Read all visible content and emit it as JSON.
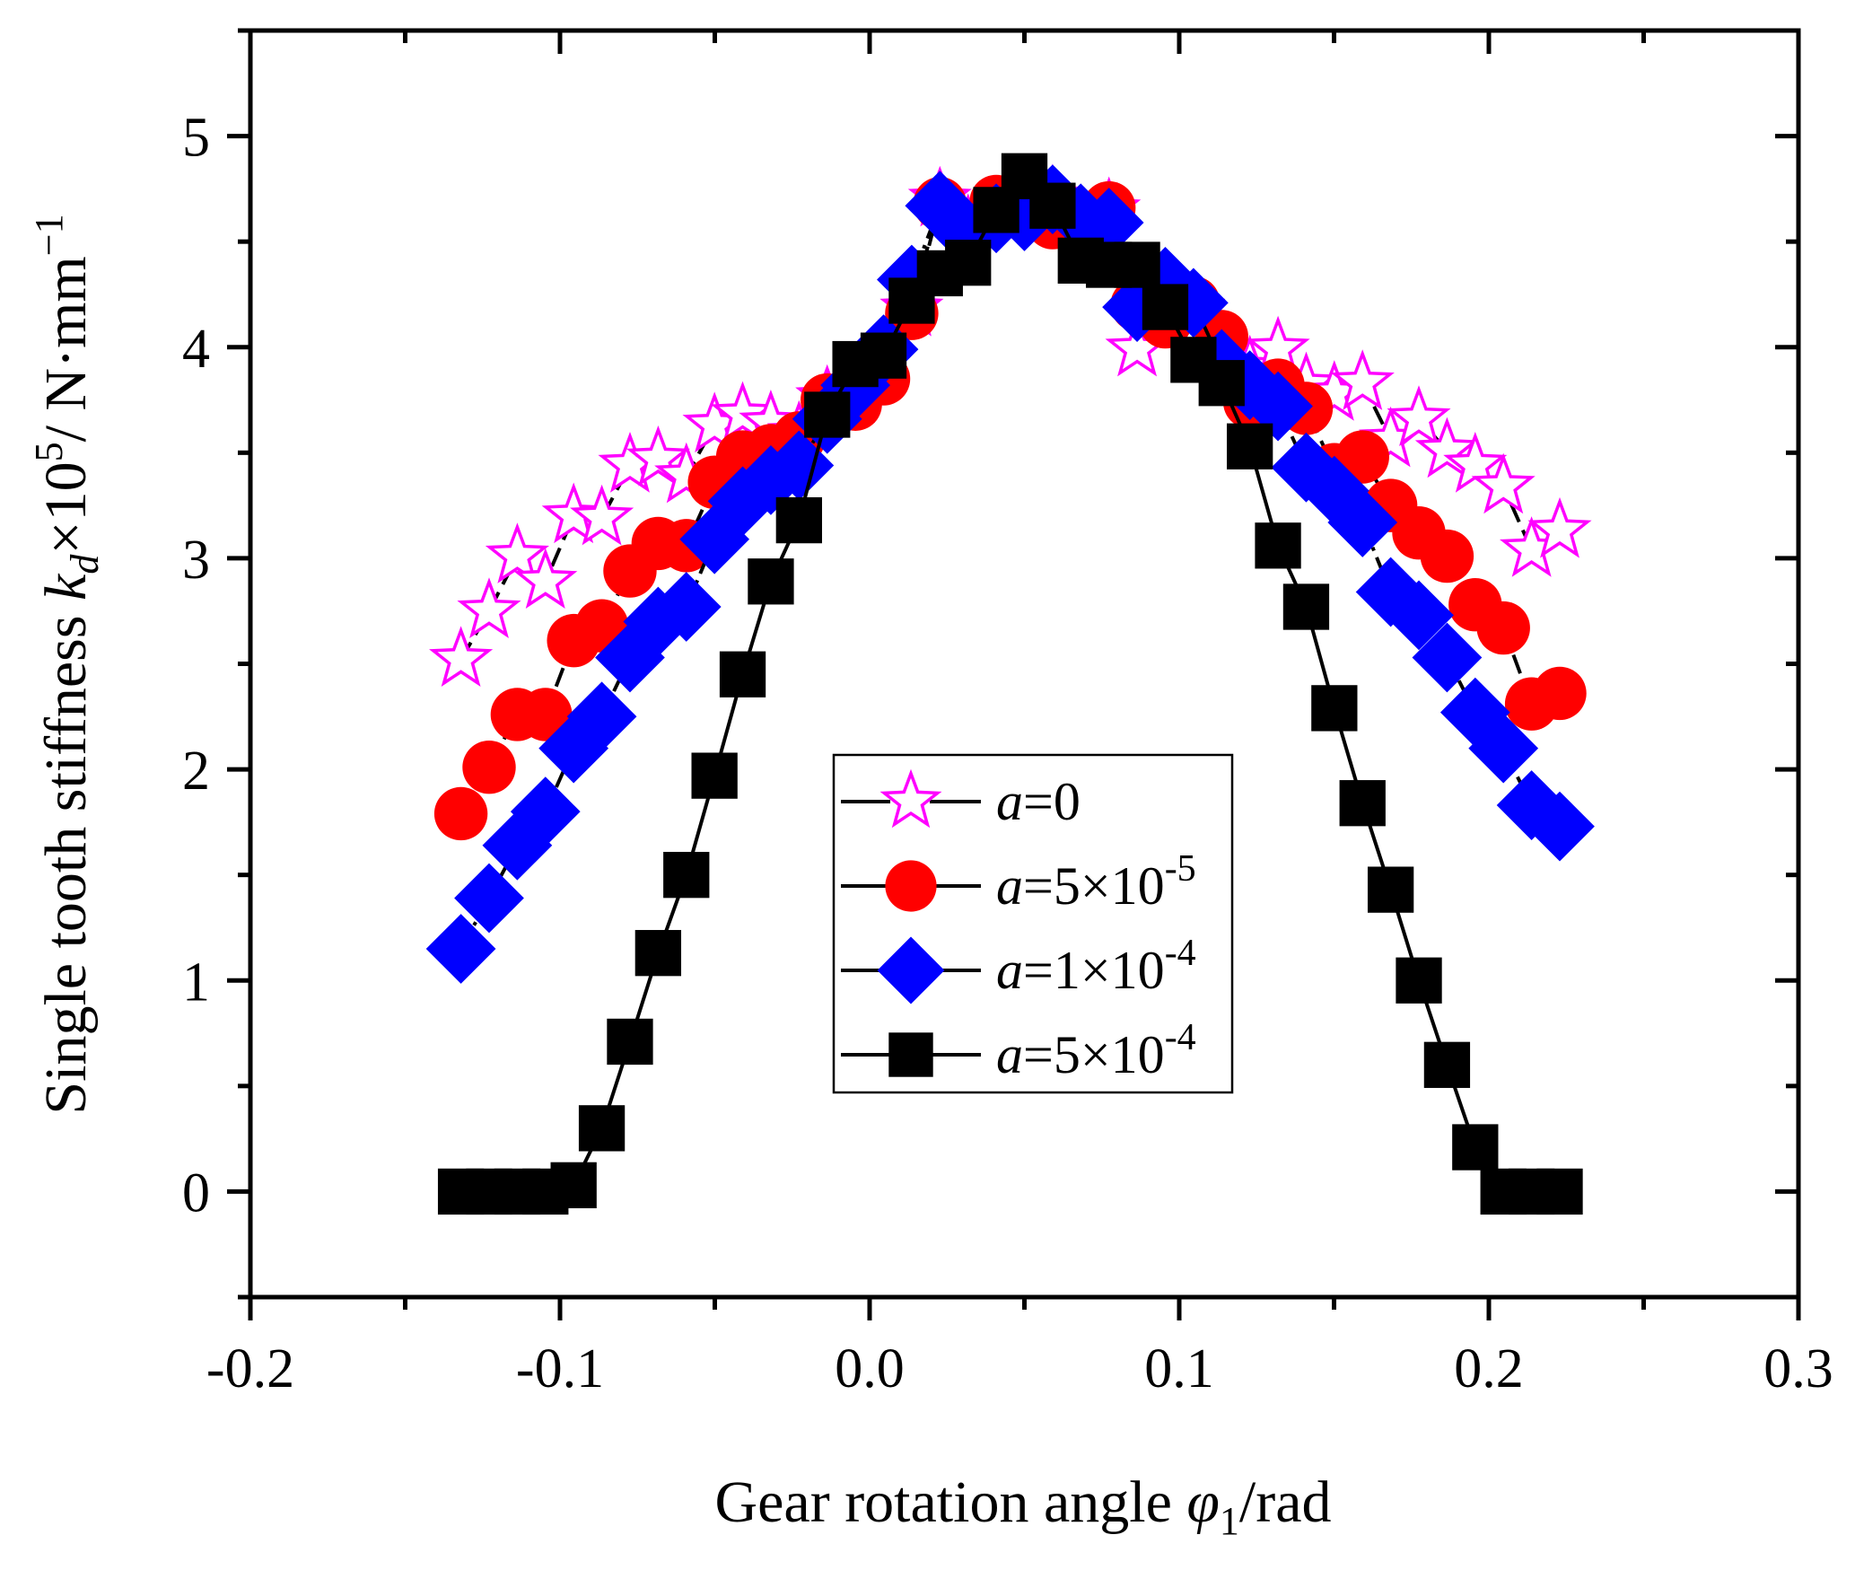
{
  "chart_data": {
    "type": "line",
    "title": "",
    "xlabel": "Gear rotation angle φ1/rad",
    "xlabel_parts": {
      "main": "Gear rotation angle ",
      "symbol": "φ",
      "subscript": "1",
      "unit": "/rad"
    },
    "ylabel": "Single tooth stiffness k_d×10^5/ N·mm^-1",
    "ylabel_parts": {
      "main": "Single tooth stiffness ",
      "symbol": "k",
      "subscript": "d",
      "times": "×10",
      "exp": "5",
      "unit": "/ N·mm",
      "unit_exp": "−1"
    },
    "xlim": [
      -0.2,
      0.3
    ],
    "ylim": [
      -0.5,
      5.5
    ],
    "x_major_ticks": [
      -0.2,
      -0.1,
      0.0,
      0.1,
      0.2,
      0.3
    ],
    "x_tick_labels": [
      "-0.2",
      "-0.1",
      "0.0",
      "0.1",
      "0.2",
      "0.3"
    ],
    "x_minor_ticks": [
      -0.15,
      -0.05,
      0.05,
      0.15,
      0.25
    ],
    "y_major_ticks": [
      0,
      1,
      2,
      3,
      4,
      5
    ],
    "y_tick_labels": [
      "0",
      "1",
      "2",
      "3",
      "4",
      "5"
    ],
    "y_minor_ticks": [
      -0.5,
      0.5,
      1.5,
      2.5,
      3.5,
      4.5,
      5.5
    ],
    "grid": false,
    "legend_position": "center-bottom",
    "x_start": -0.132,
    "x_step": 0.0091,
    "series": [
      {
        "name": "a=0",
        "label_italic": "a",
        "label_rest": "=0",
        "label_exp": "",
        "marker": "star-open",
        "color": "#ff00ff",
        "line_style": "dash",
        "values": [
          2.52,
          2.75,
          3.01,
          2.89,
          3.2,
          3.19,
          3.44,
          3.47,
          3.39,
          3.63,
          3.68,
          3.64,
          3.59,
          3.76,
          3.77,
          3.93,
          4.18,
          4.7,
          4.57,
          4.63,
          4.63,
          4.71,
          4.57,
          4.65,
          3.99,
          4.18,
          4.18,
          3.93,
          3.9,
          3.99,
          3.82,
          3.78,
          3.83,
          3.56,
          3.66,
          3.51,
          3.44,
          3.34,
          3.04,
          3.13
        ]
      },
      {
        "name": "a=5×10^-5",
        "label_italic": "a",
        "label_rest": "=5×10",
        "label_exp": "-5",
        "marker": "circle",
        "color": "#ff0000",
        "line_style": "dash",
        "values": [
          1.79,
          2.01,
          2.26,
          2.26,
          2.61,
          2.68,
          2.94,
          3.07,
          3.06,
          3.36,
          3.48,
          3.51,
          3.57,
          3.75,
          3.73,
          3.85,
          4.16,
          4.68,
          4.56,
          4.69,
          4.63,
          4.59,
          4.57,
          4.66,
          4.2,
          4.12,
          4.21,
          4.05,
          3.74,
          3.82,
          3.71,
          3.42,
          3.48,
          3.25,
          3.12,
          3.01,
          2.78,
          2.67,
          2.31,
          2.36
        ]
      },
      {
        "name": "a=1×10^-4",
        "label_italic": "a",
        "label_rest": "=1×10",
        "label_exp": "-4",
        "marker": "diamond",
        "color": "#0000ff",
        "line_style": "dashdot",
        "values": [
          1.15,
          1.39,
          1.64,
          1.8,
          2.1,
          2.25,
          2.53,
          2.7,
          2.77,
          3.09,
          3.27,
          3.37,
          3.44,
          3.66,
          3.82,
          3.99,
          4.32,
          4.67,
          4.53,
          4.61,
          4.62,
          4.7,
          4.61,
          4.59,
          4.19,
          4.31,
          4.21,
          3.92,
          3.82,
          3.72,
          3.43,
          3.32,
          3.17,
          2.84,
          2.73,
          2.53,
          2.27,
          2.1,
          1.83,
          1.73
        ]
      },
      {
        "name": "a=5×10^-4",
        "label_italic": "a",
        "label_rest": "=5×10",
        "label_exp": "-4",
        "marker": "square",
        "color": "#000000",
        "line_style": "solid",
        "values": [
          0.0,
          0.0,
          0.0,
          0.0,
          0.03,
          0.3,
          0.71,
          1.13,
          1.5,
          1.97,
          2.45,
          2.89,
          3.18,
          3.68,
          3.92,
          3.96,
          4.22,
          4.35,
          4.4,
          4.65,
          4.81,
          4.67,
          4.41,
          4.39,
          4.39,
          4.19,
          3.94,
          3.83,
          3.53,
          3.06,
          2.77,
          2.29,
          1.84,
          1.43,
          1.0,
          0.6,
          0.21,
          0.0,
          0.0,
          0.0
        ]
      }
    ]
  }
}
